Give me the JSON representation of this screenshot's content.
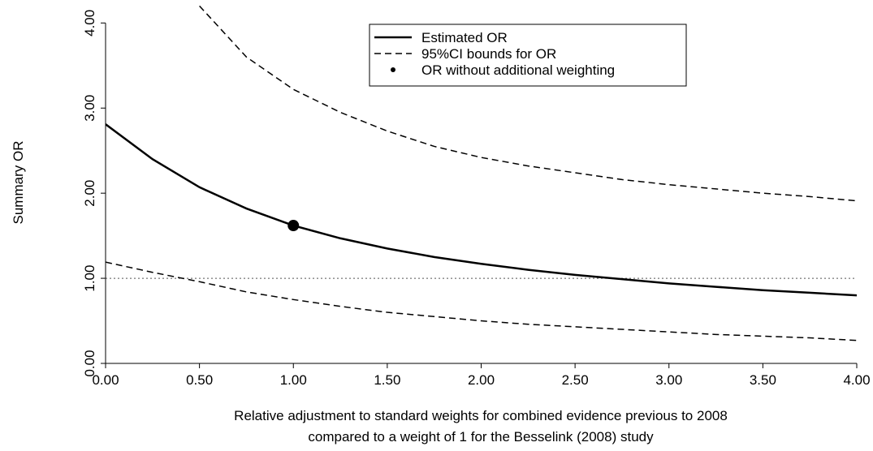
{
  "chart_data": {
    "type": "line",
    "x_label_lines": [
      "Relative adjustment to standard weights for combined evidence previous to 2008",
      "compared to a weight of 1 for the Besselink (2008) study"
    ],
    "y_label": "Summary OR",
    "x": [
      0,
      0.25,
      0.5,
      0.75,
      1,
      1.25,
      1.5,
      1.75,
      2,
      2.25,
      2.5,
      2.75,
      3,
      3.25,
      3.5,
      3.75,
      4
    ],
    "series": [
      {
        "name": "Estimated OR",
        "color": "#000000",
        "style": "solid",
        "values": [
          2.81,
          2.4,
          2.07,
          1.82,
          1.62,
          1.47,
          1.35,
          1.25,
          1.17,
          1.1,
          1.04,
          0.99,
          0.94,
          0.9,
          0.86,
          0.83,
          0.8
        ]
      },
      {
        "name": "95%CI bounds for OR",
        "color": "#000000",
        "style": "dashed",
        "values": [
          null,
          null,
          4.2,
          3.6,
          3.22,
          2.95,
          2.73,
          2.55,
          2.42,
          2.32,
          2.24,
          2.16,
          2.1,
          2.05,
          2.0,
          1.96,
          1.91
        ],
        "values_lower": [
          1.19,
          1.07,
          0.96,
          0.84,
          0.75,
          0.67,
          0.6,
          0.55,
          0.5,
          0.46,
          0.43,
          0.4,
          0.37,
          0.34,
          0.32,
          0.3,
          0.27
        ]
      }
    ],
    "point": {
      "name": "OR without additional weighting",
      "x": 1,
      "y": 1.62,
      "color": "#000000"
    },
    "reference_y": 1,
    "xlim": [
      0,
      4
    ],
    "ylim": [
      0,
      4.27
    ],
    "xticks": [
      {
        "value": 0,
        "label": "0.00"
      },
      {
        "value": 0.5,
        "label": "0.50"
      },
      {
        "value": 1,
        "label": "1.00"
      },
      {
        "value": 1.5,
        "label": "1.50"
      },
      {
        "value": 2,
        "label": "2.00"
      },
      {
        "value": 2.5,
        "label": "2.50"
      },
      {
        "value": 3,
        "label": "3.00"
      },
      {
        "value": 3.5,
        "label": "3.50"
      },
      {
        "value": 4,
        "label": "4.00"
      }
    ],
    "yticks": [
      {
        "value": 0,
        "label": "0.00"
      },
      {
        "value": 1,
        "label": "1.00"
      },
      {
        "value": 2,
        "label": "2.00"
      },
      {
        "value": 3,
        "label": "3.00"
      },
      {
        "value": 4,
        "label": "4.00"
      }
    ],
    "legend": "top-center"
  }
}
